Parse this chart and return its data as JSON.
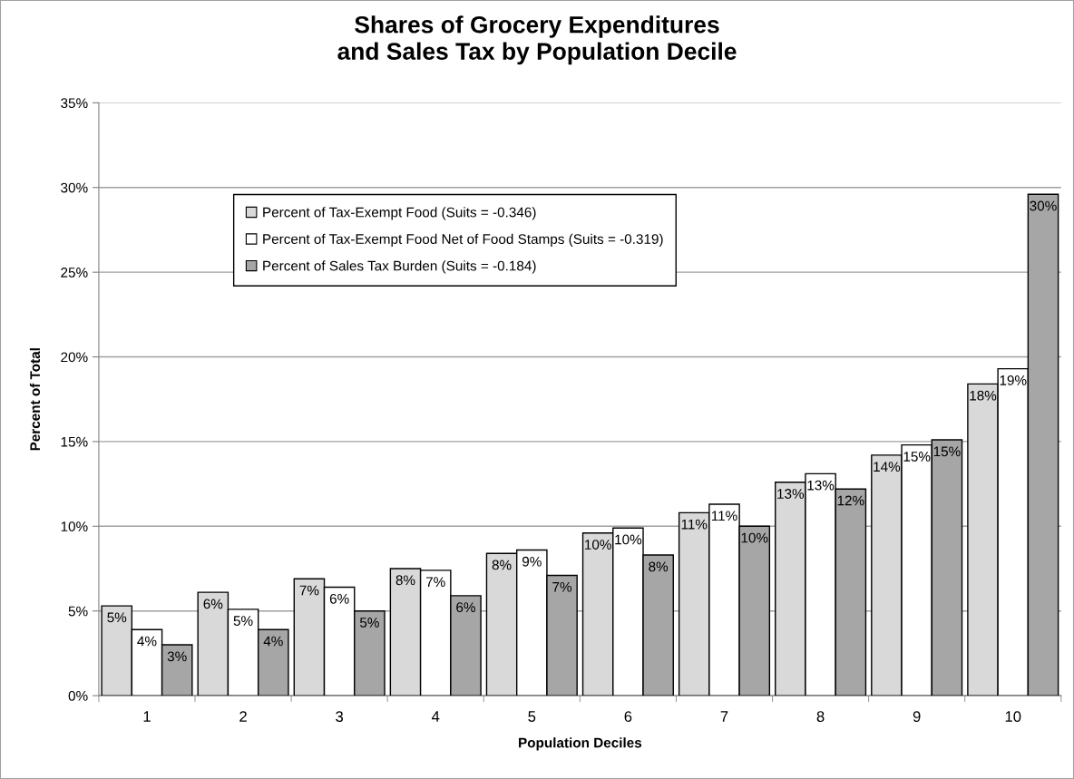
{
  "chart_data": {
    "type": "bar",
    "title": "Shares of Grocery Expenditures\nand Sales Tax by Population Decile",
    "xlabel": "Population Deciles",
    "ylabel": "Percent of Total",
    "categories": [
      "1",
      "2",
      "3",
      "4",
      "5",
      "6",
      "7",
      "8",
      "9",
      "10"
    ],
    "series": [
      {
        "name": "Percent of Tax-Exempt Food (Suits = -0.346)",
        "color": "#d9d9d9",
        "values": [
          5.3,
          6.1,
          6.9,
          7.5,
          8.4,
          9.6,
          10.8,
          12.6,
          14.2,
          18.4
        ],
        "value_labels": [
          "5%",
          "6%",
          "7%",
          "8%",
          "8%",
          "10%",
          "11%",
          "13%",
          "14%",
          "18%"
        ]
      },
      {
        "name": "Percent of Tax-Exempt Food Net of Food Stamps (Suits = -0.319)",
        "color": "#ffffff",
        "values": [
          3.9,
          5.1,
          6.4,
          7.4,
          8.6,
          9.9,
          11.3,
          13.1,
          14.8,
          19.3
        ],
        "value_labels": [
          "4%",
          "5%",
          "6%",
          "7%",
          "9%",
          "10%",
          "11%",
          "13%",
          "15%",
          "19%"
        ]
      },
      {
        "name": "Percent of Sales Tax Burden (Suits = -0.184)",
        "color": "#a6a6a6",
        "values": [
          3.0,
          3.9,
          5.0,
          5.9,
          7.1,
          8.3,
          10.0,
          12.2,
          15.1,
          29.6
        ],
        "value_labels": [
          "3%",
          "4%",
          "5%",
          "6%",
          "7%",
          "8%",
          "10%",
          "12%",
          "15%",
          "30%"
        ]
      }
    ],
    "ylim": [
      0,
      35
    ],
    "yticks": [
      {
        "value": 0,
        "label": "0%"
      },
      {
        "value": 5,
        "label": "5%"
      },
      {
        "value": 10,
        "label": "10%"
      },
      {
        "value": 15,
        "label": "15%"
      },
      {
        "value": 20,
        "label": "20%"
      },
      {
        "value": 25,
        "label": "25%"
      },
      {
        "value": 30,
        "label": "30%"
      },
      {
        "value": 35,
        "label": "35%"
      }
    ],
    "grid": "y",
    "legend": "top left"
  }
}
